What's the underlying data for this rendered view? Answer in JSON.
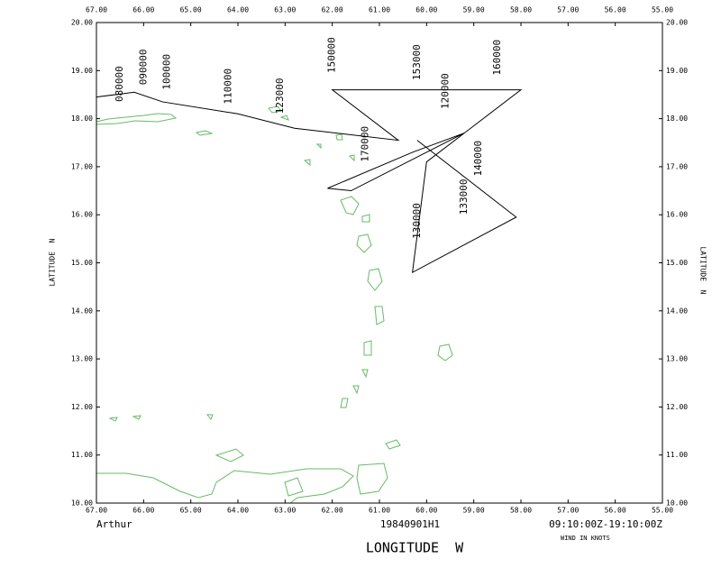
{
  "storm_name": "Arthur",
  "flight_id": "19840901H1",
  "time_range": "09:10:00Z-19:10:00Z",
  "wind_note": "WIND IN KNOTS",
  "chart_data": {
    "type": "line",
    "xlabel": "LONGITUDE  W",
    "ylabel": "LATITUDE  N",
    "color": "#000000",
    "label_color": "#cc0000",
    "xlim": [
      67,
      55
    ],
    "ylim": [
      10,
      20
    ],
    "xticks": [
      {
        "value": 67,
        "label": "67.00"
      },
      {
        "value": 66,
        "label": "66.00"
      },
      {
        "value": 65,
        "label": "65.00"
      },
      {
        "value": 64,
        "label": "64.00"
      },
      {
        "value": 63,
        "label": "63.00"
      },
      {
        "value": 62,
        "label": "62.00"
      },
      {
        "value": 61,
        "label": "61.00"
      },
      {
        "value": 60,
        "label": "60.00"
      },
      {
        "value": 59,
        "label": "59.00"
      },
      {
        "value": 58,
        "label": "58.00"
      },
      {
        "value": 57,
        "label": "57.00"
      },
      {
        "value": 56,
        "label": "56.00"
      },
      {
        "value": 55,
        "label": "55.00"
      }
    ],
    "yticks": [
      {
        "value": 10,
        "label": "10.00"
      },
      {
        "value": 11,
        "label": "11.00"
      },
      {
        "value": 12,
        "label": "12.00"
      },
      {
        "value": 13,
        "label": "13.00"
      },
      {
        "value": 14,
        "label": "14.00"
      },
      {
        "value": 15,
        "label": "15.00"
      },
      {
        "value": 16,
        "label": "16.00"
      },
      {
        "value": 17,
        "label": "17.00"
      },
      {
        "value": 18,
        "label": "18.00"
      },
      {
        "value": 19,
        "label": "19.00"
      },
      {
        "value": 20,
        "label": "20.00"
      }
    ],
    "x": [
      67.0,
      66.2,
      65.6,
      64.0,
      62.8,
      60.6,
      62.0,
      58.0,
      59.2,
      60.3,
      62.1,
      61.6,
      59.2,
      60.0,
      60.3,
      58.1,
      60.2
    ],
    "values": [
      18.45,
      18.55,
      18.35,
      18.1,
      17.8,
      17.55,
      18.6,
      18.6,
      17.7,
      17.3,
      16.55,
      16.5,
      17.7,
      17.1,
      14.8,
      15.95,
      17.55
    ],
    "point_labels": [
      {
        "text": "080000",
        "x": 66.5,
        "y": 18.35
      },
      {
        "text": "090000",
        "x": 66.0,
        "y": 18.7
      },
      {
        "text": "100000",
        "x": 65.5,
        "y": 18.6
      },
      {
        "text": "110000",
        "x": 64.2,
        "y": 18.3
      },
      {
        "text": "123000",
        "x": 63.1,
        "y": 18.1
      },
      {
        "text": "150000",
        "x": 62.0,
        "y": 18.95
      },
      {
        "text": "153000",
        "x": 60.2,
        "y": 18.8
      },
      {
        "text": "160000",
        "x": 58.5,
        "y": 18.9
      },
      {
        "text": "120000",
        "x": 59.6,
        "y": 18.2
      },
      {
        "text": "170000",
        "x": 61.3,
        "y": 17.1
      },
      {
        "text": "140000",
        "x": 58.9,
        "y": 16.8
      },
      {
        "text": "133000",
        "x": 59.2,
        "y": 16.0
      },
      {
        "text": "130000",
        "x": 60.2,
        "y": 15.5
      }
    ]
  }
}
